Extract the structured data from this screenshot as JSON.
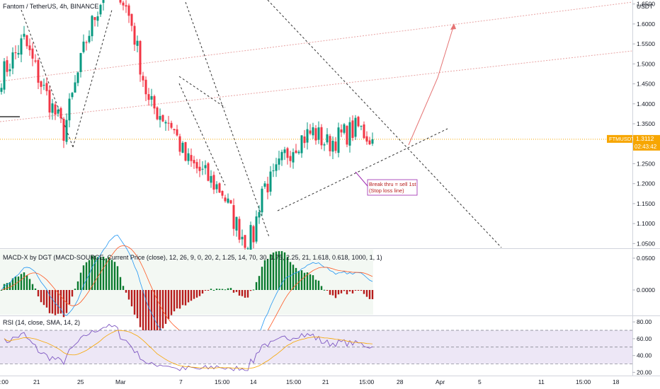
{
  "header": {
    "symbol_title": "Fantom / TetherUS, 4h, BINANCE",
    "currency": "USDT"
  },
  "price_badge": {
    "symbol": "FTMUSDT",
    "price": "1.3112",
    "countdown": "02:43:42",
    "color": "#f7a600"
  },
  "annotation": {
    "line1": "Break thru = sell 1st",
    "line2": "(Stop loss line)"
  },
  "macd": {
    "title": "MACD-X by DGT (MACD-SOURCE, Current Price (close), 12, 26, 9, 0, 20, 2, 1.25, 14, 70, 30, 1.75, 2.25, 21, 1.618, 0.618, 1000, 1, 1)",
    "tick_labels": [
      "0.0500",
      "0.0000"
    ]
  },
  "rsi": {
    "title": "RSI (14, close, SMA, 14, 2)",
    "tick_labels": [
      "80.00",
      "60.00",
      "40.00",
      "20.00"
    ]
  },
  "colors": {
    "up": "#089981",
    "down": "#f23645",
    "macd_up": "#0a7a2e",
    "macd_down": "#b71c1c",
    "rsi": "#7e57c2",
    "rsi_ma": "#f7a600",
    "trend": "#e57373"
  },
  "chart_data": {
    "type": "candlestick",
    "title": "Fantom / TetherUS, 4h, BINANCE",
    "y_axis": {
      "ticks": [
        "1.6500",
        "1.6000",
        "1.5500",
        "1.5000",
        "1.4500",
        "1.4000",
        "1.3500",
        "1.3000",
        "1.2500",
        "1.2000",
        "1.1500",
        "1.1000",
        "1.0500"
      ],
      "ylim": [
        1.04,
        1.66
      ]
    },
    "x_axis": {
      "ticks": [
        ":00",
        "21",
        "25",
        "Mar",
        "7",
        "15:00",
        "14",
        "15:00",
        "21",
        "15:00",
        "28",
        "Apr",
        "5",
        "11",
        "15:00",
        "18"
      ]
    },
    "last_price": 1.3112,
    "close_path": [
      [
        0,
        1.47
      ],
      [
        8,
        1.56
      ],
      [
        14,
        1.45
      ],
      [
        22,
        1.33
      ],
      [
        30,
        1.56
      ],
      [
        36,
        1.68
      ],
      [
        40,
        1.72
      ],
      [
        46,
        1.6
      ],
      [
        52,
        1.4
      ],
      [
        60,
        1.35
      ],
      [
        65,
        1.26
      ],
      [
        72,
        1.22
      ],
      [
        78,
        1.18
      ],
      [
        82,
        1.11
      ],
      [
        86,
        1.06
      ],
      [
        89,
        1.07
      ],
      [
        92,
        1.19
      ],
      [
        96,
        1.21
      ],
      [
        100,
        1.27
      ],
      [
        105,
        1.31
      ],
      [
        110,
        1.33
      ],
      [
        115,
        1.3
      ],
      [
        120,
        1.32
      ],
      [
        126,
        1.34
      ],
      [
        131,
        1.31
      ]
    ]
  }
}
